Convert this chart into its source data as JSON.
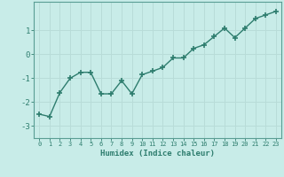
{
  "x": [
    0,
    1,
    2,
    3,
    4,
    5,
    6,
    7,
    8,
    9,
    10,
    11,
    12,
    13,
    14,
    15,
    16,
    17,
    18,
    19,
    20,
    21,
    22,
    23
  ],
  "y": [
    -2.5,
    -2.6,
    -1.6,
    -1.0,
    -0.75,
    -0.75,
    -1.65,
    -1.65,
    -1.1,
    -1.65,
    -0.85,
    -0.7,
    -0.55,
    -0.15,
    -0.15,
    0.25,
    0.4,
    0.75,
    1.1,
    0.7,
    1.1,
    1.5,
    1.65,
    1.8
  ],
  "xlabel": "Humidex (Indice chaleur)",
  "line_color": "#2e7d6e",
  "bg_color": "#c8ece8",
  "grid_color": "#b8dcd8",
  "tick_color": "#2e7d6e",
  "label_color": "#2e7d6e",
  "spine_color": "#5a9e94",
  "xlim": [
    -0.5,
    23.5
  ],
  "ylim": [
    -3.5,
    2.2
  ],
  "yticks": [
    -3,
    -2,
    -1,
    0,
    1
  ],
  "xticks": [
    0,
    1,
    2,
    3,
    4,
    5,
    6,
    7,
    8,
    9,
    10,
    11,
    12,
    13,
    14,
    15,
    16,
    17,
    18,
    19,
    20,
    21,
    22,
    23
  ],
  "marker": "+",
  "linewidth": 1.0,
  "markersize": 4.5,
  "markeredgewidth": 1.2
}
